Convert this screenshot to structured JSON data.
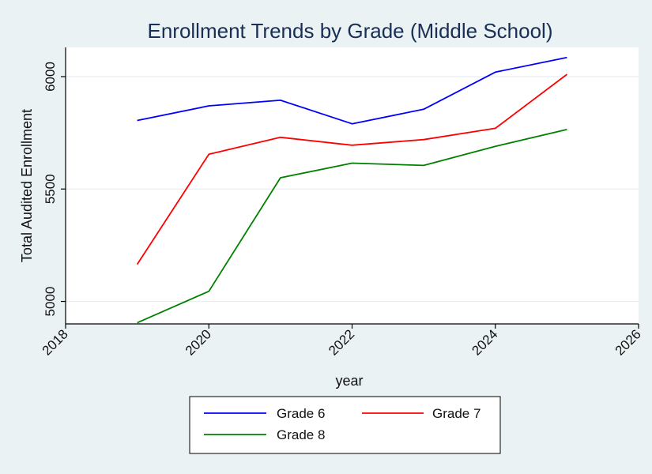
{
  "chart_data": {
    "type": "line",
    "title": "Enrollment Trends by Grade (Middle School)",
    "xlabel": "year",
    "ylabel": "Total Audited Enrollment",
    "xlim": [
      2018,
      2026
    ],
    "ylim": [
      4900,
      6130
    ],
    "xticks": [
      2018,
      2020,
      2022,
      2024,
      2026
    ],
    "yticks": [
      5000,
      5500,
      6000
    ],
    "grid": true,
    "legend_position": "bottom",
    "x": [
      2019,
      2020,
      2021,
      2022,
      2023,
      2024,
      2025
    ],
    "series": [
      {
        "name": "Grade 6",
        "color": "#0000ff",
        "values": [
          5805,
          5870,
          5895,
          5790,
          5855,
          6020,
          6085
        ]
      },
      {
        "name": "Grade 7",
        "color": "#ff0000",
        "values": [
          5165,
          5655,
          5730,
          5695,
          5720,
          5770,
          6010
        ]
      },
      {
        "name": "Grade 8",
        "color": "#008000",
        "values": [
          4905,
          5045,
          5550,
          5615,
          5605,
          5690,
          5765
        ]
      }
    ]
  }
}
